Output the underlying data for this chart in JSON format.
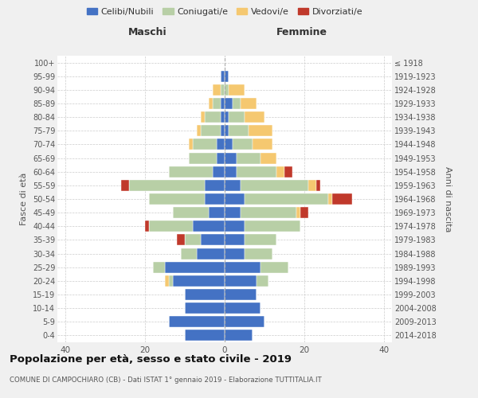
{
  "age_groups": [
    "0-4",
    "5-9",
    "10-14",
    "15-19",
    "20-24",
    "25-29",
    "30-34",
    "35-39",
    "40-44",
    "45-49",
    "50-54",
    "55-59",
    "60-64",
    "65-69",
    "70-74",
    "75-79",
    "80-84",
    "85-89",
    "90-94",
    "95-99",
    "100+"
  ],
  "birth_years": [
    "2014-2018",
    "2009-2013",
    "2004-2008",
    "1999-2003",
    "1994-1998",
    "1989-1993",
    "1984-1988",
    "1979-1983",
    "1974-1978",
    "1969-1973",
    "1964-1968",
    "1959-1963",
    "1954-1958",
    "1949-1953",
    "1944-1948",
    "1939-1943",
    "1934-1938",
    "1929-1933",
    "1924-1928",
    "1919-1923",
    "≤ 1918"
  ],
  "maschi": {
    "celibi": [
      10,
      14,
      10,
      10,
      13,
      15,
      7,
      6,
      8,
      4,
      5,
      5,
      3,
      2,
      2,
      1,
      1,
      1,
      0,
      1,
      0
    ],
    "coniugati": [
      0,
      0,
      0,
      0,
      1,
      3,
      4,
      4,
      11,
      9,
      14,
      19,
      11,
      7,
      6,
      5,
      4,
      2,
      1,
      0,
      0
    ],
    "vedovi": [
      0,
      0,
      0,
      0,
      1,
      0,
      0,
      0,
      0,
      0,
      0,
      0,
      0,
      0,
      1,
      1,
      1,
      1,
      2,
      0,
      0
    ],
    "divorziati": [
      0,
      0,
      0,
      0,
      0,
      0,
      0,
      2,
      1,
      0,
      0,
      2,
      0,
      0,
      0,
      0,
      0,
      0,
      0,
      0,
      0
    ]
  },
  "femmine": {
    "nubili": [
      7,
      10,
      9,
      8,
      8,
      9,
      5,
      5,
      5,
      4,
      5,
      4,
      3,
      3,
      2,
      1,
      1,
      2,
      0,
      1,
      0
    ],
    "coniugate": [
      0,
      0,
      0,
      0,
      3,
      7,
      7,
      8,
      14,
      14,
      21,
      17,
      10,
      6,
      5,
      5,
      4,
      2,
      1,
      0,
      0
    ],
    "vedove": [
      0,
      0,
      0,
      0,
      0,
      0,
      0,
      0,
      0,
      1,
      1,
      2,
      2,
      4,
      5,
      6,
      5,
      4,
      4,
      0,
      0
    ],
    "divorziate": [
      0,
      0,
      0,
      0,
      0,
      0,
      0,
      0,
      0,
      2,
      5,
      1,
      2,
      0,
      0,
      0,
      0,
      0,
      0,
      0,
      0
    ]
  },
  "colors": {
    "celibi": "#4472c4",
    "coniugati": "#b8cfa6",
    "vedovi": "#f5c870",
    "divorziati": "#c0392b"
  },
  "xlim": 42,
  "title": "Popolazione per età, sesso e stato civile - 2019",
  "subtitle": "COMUNE DI CAMPOCHIARO (CB) - Dati ISTAT 1° gennaio 2019 - Elaborazione TUTTITALIA.IT",
  "ylabel_left": "Fasce di età",
  "ylabel_right": "Anni di nascita",
  "xlabel_maschi": "Maschi",
  "xlabel_femmine": "Femmine",
  "bg_color": "#f0f0f0",
  "plot_bg_color": "#ffffff",
  "grid_color": "#cccccc"
}
